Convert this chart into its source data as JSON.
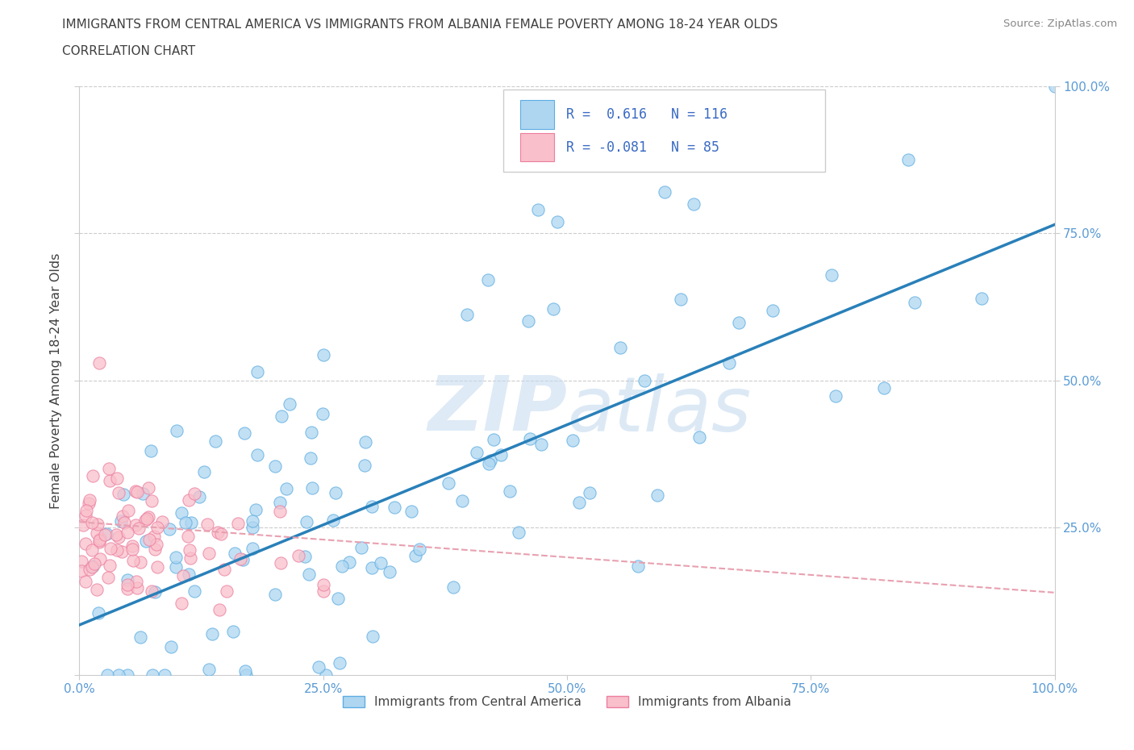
{
  "title_line1": "IMMIGRANTS FROM CENTRAL AMERICA VS IMMIGRANTS FROM ALBANIA FEMALE POVERTY AMONG 18-24 YEAR OLDS",
  "title_line2": "CORRELATION CHART",
  "source": "Source: ZipAtlas.com",
  "ylabel": "Female Poverty Among 18-24 Year Olds",
  "r_blue": 0.616,
  "n_blue": 116,
  "r_pink": -0.081,
  "n_pink": 85,
  "legend_label_blue": "Immigrants from Central America",
  "legend_label_pink": "Immigrants from Albania",
  "blue_color": "#AED6F1",
  "blue_edge_color": "#5DADE2",
  "pink_color": "#F9BFCA",
  "pink_edge_color": "#EC7FA0",
  "blue_line_color": "#2980B9",
  "pink_line_color": "#E8A0B0",
  "watermark_color": "#C8DCF0",
  "tick_label_color": "#5B9BD5",
  "title_color": "#404040",
  "ylabel_color": "#404040",
  "background_color": "#FFFFFF",
  "grid_color": "#CCCCCC",
  "blue_intercept": 0.085,
  "blue_slope": 0.68,
  "pink_intercept": 0.26,
  "pink_slope": -0.12
}
